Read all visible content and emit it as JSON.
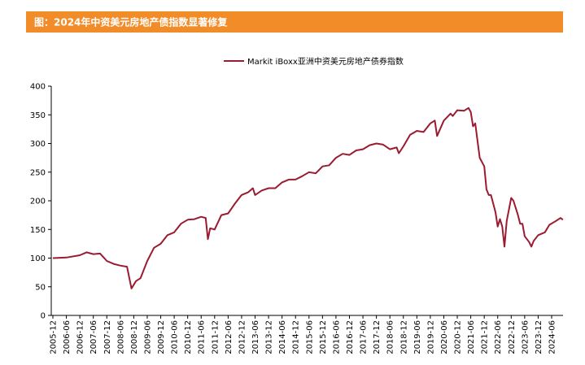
{
  "chart_data": {
    "type": "line",
    "title": "图：2024年中资美元房地产债指数显著修复",
    "x": [
      "2005-12",
      "2006-06",
      "2006-12",
      "2007-03",
      "2007-06",
      "2007-09",
      "2007-12",
      "2008-03",
      "2008-06",
      "2008-09",
      "2008-11",
      "2009-01",
      "2009-03",
      "2009-06",
      "2009-09",
      "2009-12",
      "2010-03",
      "2010-06",
      "2010-09",
      "2010-12",
      "2011-03",
      "2011-06",
      "2011-08",
      "2011-09",
      "2011-10",
      "2011-12",
      "2012-03",
      "2012-06",
      "2012-09",
      "2012-12",
      "2013-03",
      "2013-05",
      "2013-06",
      "2013-09",
      "2013-12",
      "2014-03",
      "2014-06",
      "2014-09",
      "2014-12",
      "2015-03",
      "2015-06",
      "2015-09",
      "2015-12",
      "2016-03",
      "2016-06",
      "2016-09",
      "2016-12",
      "2017-03",
      "2017-06",
      "2017-09",
      "2017-12",
      "2018-03",
      "2018-06",
      "2018-09",
      "2018-10",
      "2018-12",
      "2019-03",
      "2019-06",
      "2019-09",
      "2019-12",
      "2020-02",
      "2020-03",
      "2020-06",
      "2020-09",
      "2020-10",
      "2020-12",
      "2021-03",
      "2021-05",
      "2021-06",
      "2021-07",
      "2021-08",
      "2021-10",
      "2021-12",
      "2022-01",
      "2022-02",
      "2022-03",
      "2022-05",
      "2022-06",
      "2022-07",
      "2022-08",
      "2022-09",
      "2022-10",
      "2022-12",
      "2023-01",
      "2023-03",
      "2023-04",
      "2023-05",
      "2023-06",
      "2023-08",
      "2023-09",
      "2023-10",
      "2023-12",
      "2024-03",
      "2024-05",
      "2024-08",
      "2024-10",
      "2024-11"
    ],
    "series": [
      {
        "name": "Markit iBoxx亚洲中资美元房地产债券指数",
        "color": "#9b1b30",
        "values": [
          100,
          101,
          105,
          110,
          107,
          108,
          95,
          90,
          87,
          85,
          47,
          60,
          65,
          95,
          118,
          125,
          140,
          145,
          160,
          167,
          168,
          172,
          170,
          133,
          152,
          150,
          175,
          178,
          195,
          210,
          215,
          222,
          210,
          218,
          222,
          222,
          232,
          237,
          237,
          243,
          250,
          248,
          260,
          262,
          275,
          282,
          280,
          288,
          290,
          297,
          300,
          298,
          290,
          293,
          283,
          295,
          315,
          322,
          320,
          335,
          340,
          313,
          340,
          352,
          348,
          358,
          357,
          362,
          355,
          330,
          335,
          275,
          260,
          220,
          210,
          210,
          180,
          155,
          168,
          155,
          120,
          165,
          205,
          200,
          175,
          160,
          160,
          138,
          128,
          120,
          130,
          140,
          145,
          158,
          165,
          170,
          167
        ]
      }
    ],
    "xticks": [
      "2005-12",
      "2006-06",
      "2006-12",
      "2007-06",
      "2007-12",
      "2008-06",
      "2008-12",
      "2009-06",
      "2009-12",
      "2010-06",
      "2010-12",
      "2011-06",
      "2011-12",
      "2012-06",
      "2012-12",
      "2013-06",
      "2013-12",
      "2014-06",
      "2014-12",
      "2015-06",
      "2015-12",
      "2016-06",
      "2016-12",
      "2017-06",
      "2017-12",
      "2018-06",
      "2018-12",
      "2019-06",
      "2019-12",
      "2020-06",
      "2020-12",
      "2021-06",
      "2021-12",
      "2022-06",
      "2022-12",
      "2023-06",
      "2023-12",
      "2024-06"
    ],
    "ylim": [
      0,
      400
    ],
    "yticks": [
      0,
      50,
      100,
      150,
      200,
      250,
      300,
      350,
      400
    ]
  }
}
